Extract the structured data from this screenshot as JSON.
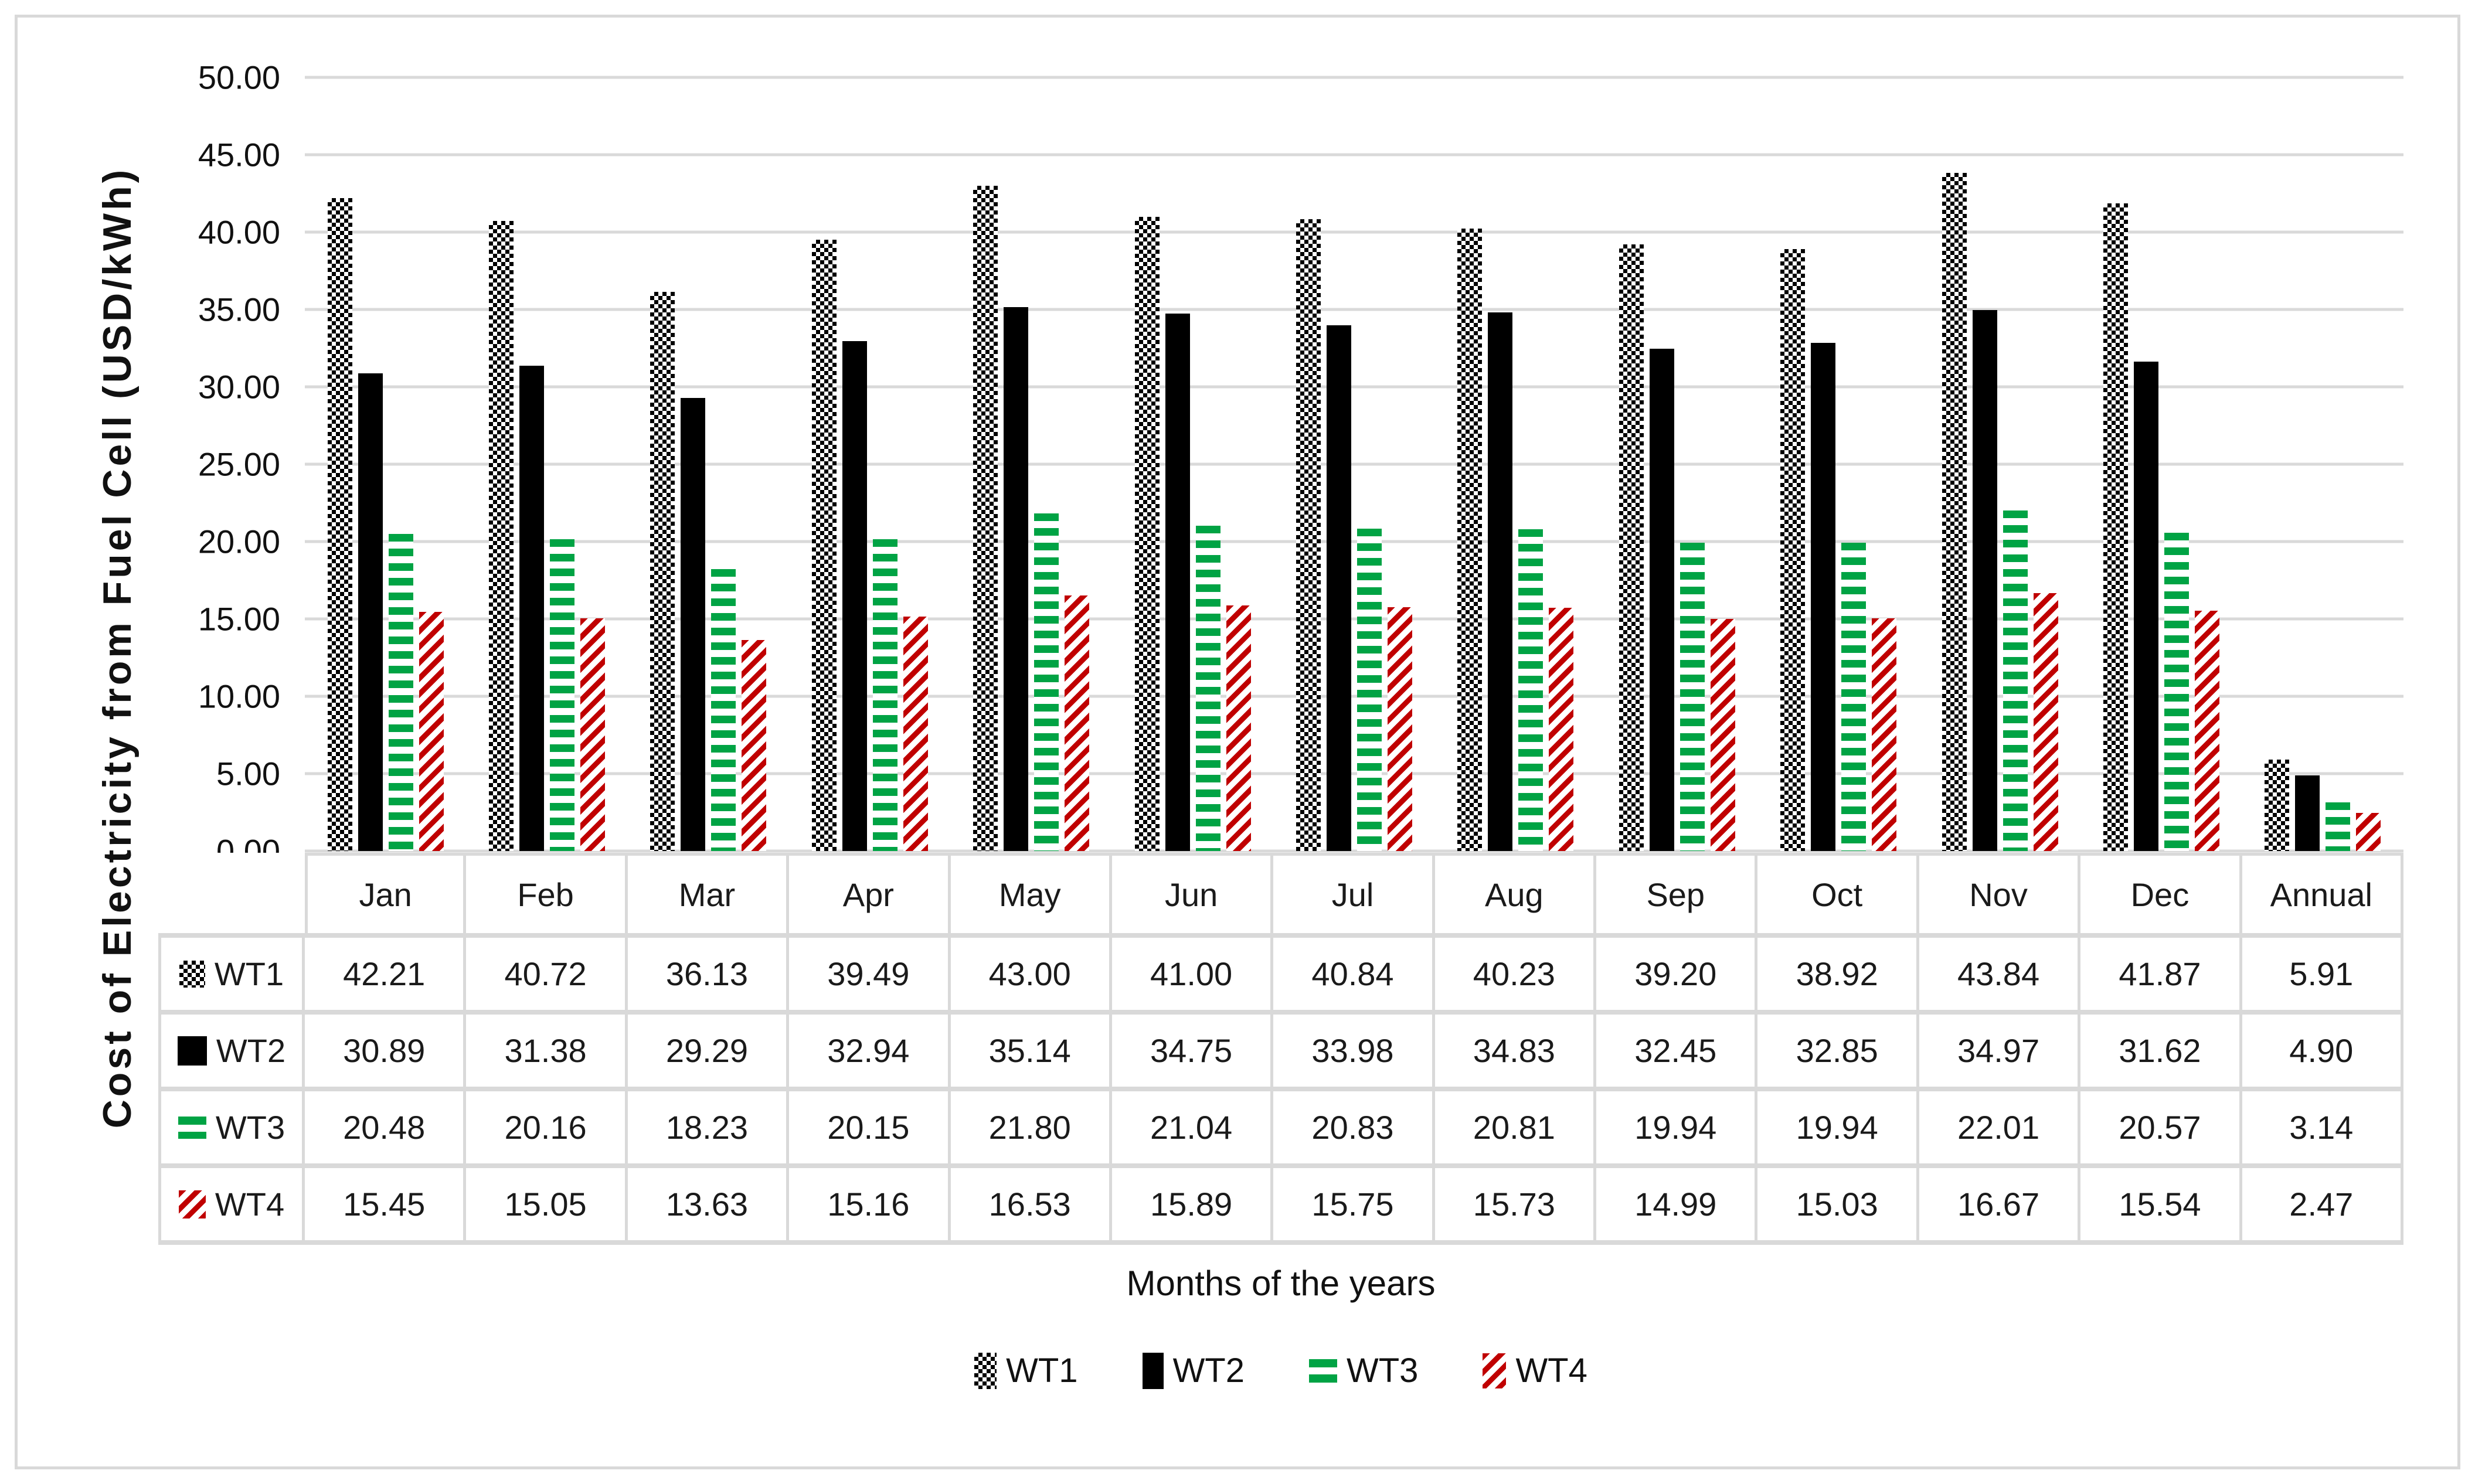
{
  "colors": {
    "green": "#00A344",
    "red": "#C00000",
    "grid": "#D9D9D9",
    "ink": "#1A1A1A"
  },
  "chart_data": {
    "type": "bar",
    "title": "",
    "xlabel": "Months of the years",
    "ylabel": "Cost of Electricity from Fuel Cell (USD/kWh)",
    "ylim": [
      0,
      50
    ],
    "ytick_step": 5,
    "yticks": [
      "0.00",
      "5.00",
      "10.00",
      "15.00",
      "20.00",
      "25.00",
      "30.00",
      "35.00",
      "40.00",
      "45.00",
      "50.00"
    ],
    "grid": true,
    "legend_position": "bottom",
    "categories": [
      "Jan",
      "Feb",
      "Mar",
      "Apr",
      "May",
      "Jun",
      "Jul",
      "Aug",
      "Sep",
      "Oct",
      "Nov",
      "Dec",
      "Annual"
    ],
    "series": [
      {
        "name": "WT1",
        "pattern": "checker",
        "values": [
          42.21,
          40.72,
          36.13,
          39.49,
          43.0,
          41.0,
          40.84,
          40.23,
          39.2,
          38.92,
          43.84,
          41.87,
          5.91
        ]
      },
      {
        "name": "WT2",
        "pattern": "solid",
        "values": [
          30.89,
          31.38,
          29.29,
          32.94,
          35.14,
          34.75,
          33.98,
          34.83,
          32.45,
          32.85,
          34.97,
          31.62,
          4.9
        ]
      },
      {
        "name": "WT3",
        "pattern": "hdash",
        "values": [
          20.48,
          20.16,
          18.23,
          20.15,
          21.8,
          21.04,
          20.83,
          20.81,
          19.94,
          19.94,
          22.01,
          20.57,
          3.14
        ]
      },
      {
        "name": "WT4",
        "pattern": "diag",
        "values": [
          15.45,
          15.05,
          13.63,
          15.16,
          16.53,
          15.89,
          15.75,
          15.73,
          14.99,
          15.03,
          16.67,
          15.54,
          2.47
        ]
      }
    ],
    "value_decimals": 2
  }
}
